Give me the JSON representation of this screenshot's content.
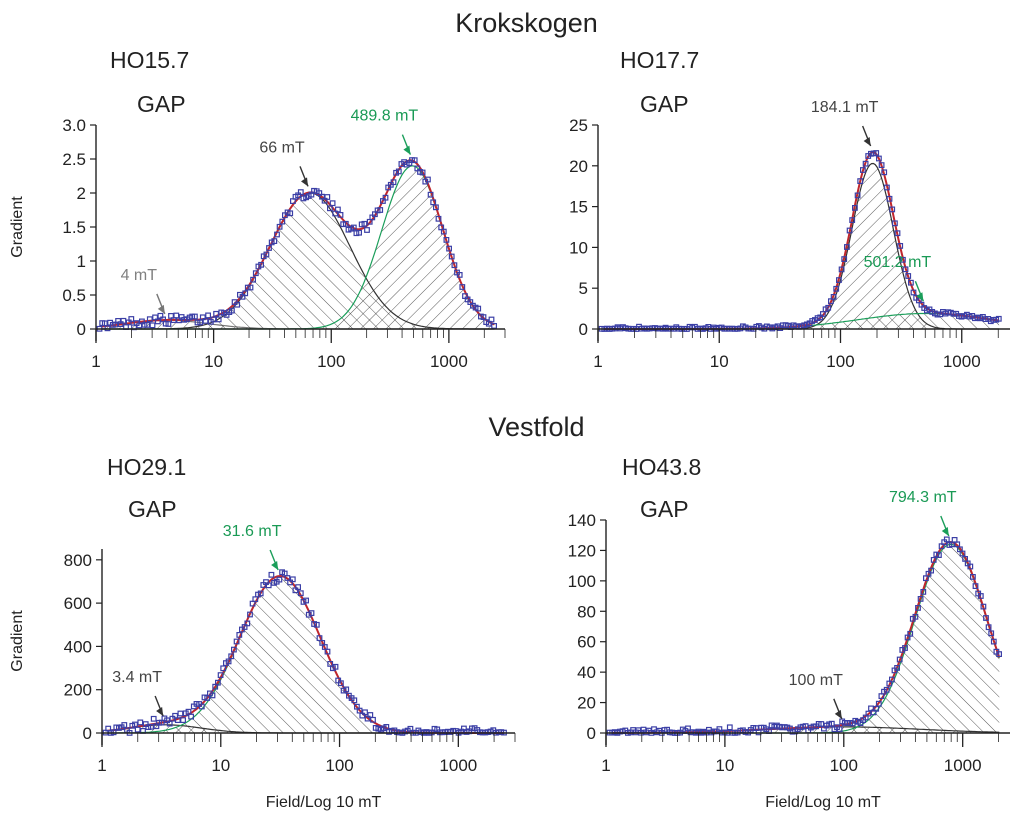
{
  "sections": {
    "top": "Krokskogen",
    "bottom": "Vestfold"
  },
  "common": {
    "gap_label": "GAP",
    "ylabel": "Gradient",
    "xlabel": "Field/Log 10 mT"
  },
  "colors": {
    "fit": "#c0262c",
    "green_component": "#1b9e5a",
    "black_component": "#333333",
    "points": "#3b3fa6",
    "green_text": "#1a9a55",
    "gray_text": "#808080"
  },
  "chart_data": [
    {
      "id": "HO15.7",
      "type": "line",
      "title": "HO15.7",
      "subtitle": "GAP",
      "section": "Krokskogen",
      "xscale": "log",
      "xlim": [
        1,
        3000
      ],
      "ylim": [
        0,
        3.0
      ],
      "yticks": [
        "0",
        "0.5",
        "1",
        "1.5",
        "2",
        "2.5",
        "3.0"
      ],
      "xticks": [
        "1",
        "10",
        "100",
        "1000"
      ],
      "ylabel": "Gradient",
      "xlabel": "",
      "components": [
        {
          "peak_mT": 4,
          "amplitude": 0.13,
          "sigma": 0.35,
          "color": "gray"
        },
        {
          "peak_mT": 66,
          "amplitude": 2.0,
          "sigma": 0.34,
          "color": "black"
        },
        {
          "peak_mT": 489.8,
          "amplitude": 2.4,
          "sigma": 0.26,
          "color": "green"
        }
      ],
      "annotations": [
        {
          "text": "4 mT",
          "at_x": 4,
          "color": "gray"
        },
        {
          "text": "66 mT",
          "at_x": 66,
          "color": "black"
        },
        {
          "text": "489.8 mT",
          "at_x": 489.8,
          "color": "green"
        }
      ],
      "noise": 0.07
    },
    {
      "id": "HO17.7",
      "type": "line",
      "title": "HO17.7",
      "subtitle": "GAP",
      "section": "Krokskogen",
      "xscale": "log",
      "xlim": [
        1,
        2500
      ],
      "ylim": [
        0,
        25
      ],
      "yticks": [
        "0",
        "5",
        "10",
        "15",
        "20",
        "25"
      ],
      "xticks": [
        "1",
        "10",
        "100",
        "1000"
      ],
      "ylabel": "",
      "xlabel": "",
      "components": [
        {
          "peak_mT": 184.1,
          "amplitude": 20.3,
          "sigma": 0.17,
          "color": "black"
        },
        {
          "peak_mT": 501.2,
          "amplitude": 1.9,
          "sigma": 0.55,
          "color": "green"
        }
      ],
      "annotations": [
        {
          "text": "184.1 mT",
          "at_x": 184.1,
          "color": "black"
        },
        {
          "text": "501.2 mT",
          "at_x": 501.2,
          "color": "green"
        }
      ],
      "noise": 0.3
    },
    {
      "id": "HO29.1",
      "type": "line",
      "title": "HO29.1",
      "subtitle": "GAP",
      "section": "Vestfold",
      "xscale": "log",
      "xlim": [
        1,
        3000
      ],
      "ylim": [
        0,
        850
      ],
      "yticks": [
        "0",
        "200",
        "400",
        "600",
        "800"
      ],
      "xticks": [
        "1",
        "10",
        "100",
        "1000"
      ],
      "ylabel": "Gradient",
      "xlabel": "Field/Log 10 mT",
      "components": [
        {
          "peak_mT": 3.4,
          "amplitude": 38,
          "sigma": 0.3,
          "color": "black"
        },
        {
          "peak_mT": 31.6,
          "amplitude": 725,
          "sigma": 0.34,
          "color": "green"
        }
      ],
      "annotations": [
        {
          "text": "3.4 mT",
          "at_x": 3.4,
          "color": "black"
        },
        {
          "text": "31.6 mT",
          "at_x": 31.6,
          "color": "green"
        }
      ],
      "noise": 25
    },
    {
      "id": "HO43.8",
      "type": "line",
      "title": "HO43.8",
      "subtitle": "GAP",
      "section": "Vestfold",
      "xscale": "log",
      "xlim": [
        1,
        2500
      ],
      "ylim": [
        0,
        140
      ],
      "yticks": [
        "0",
        "20",
        "40",
        "60",
        "80",
        "100",
        "120",
        "140"
      ],
      "xticks": [
        "1",
        "10",
        "100",
        "1000"
      ],
      "ylabel": "",
      "xlabel": "Field/Log 10 mT",
      "components": [
        {
          "peak_mT": 100,
          "amplitude": 4,
          "sigma": 0.65,
          "color": "black"
        },
        {
          "peak_mT": 794.3,
          "amplitude": 124,
          "sigma": 0.3,
          "color": "green"
        }
      ],
      "annotations": [
        {
          "text": "100 mT",
          "at_x": 100,
          "color": "black"
        },
        {
          "text": "794.3 mT",
          "at_x": 794.3,
          "color": "green"
        }
      ],
      "noise": 2.5
    }
  ]
}
